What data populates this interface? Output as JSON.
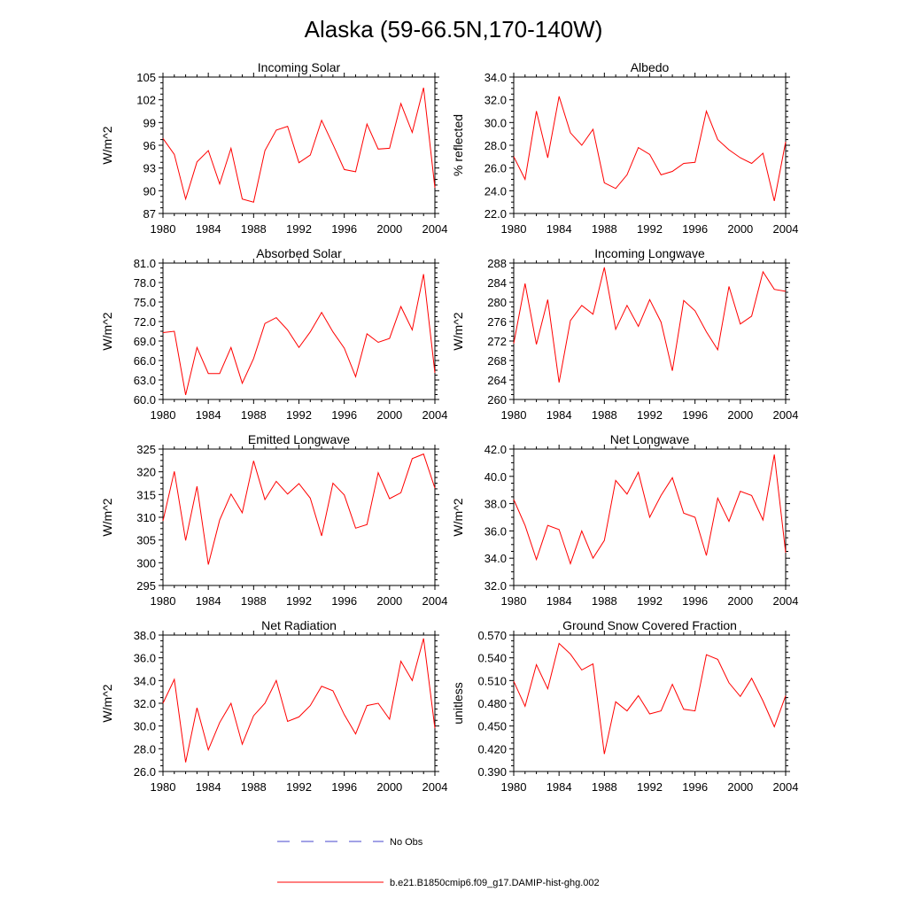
{
  "figure": {
    "title": "Alaska (59-66.5N,170-140W)",
    "colors": {
      "model": "#ff0000",
      "obs": "#4444cc",
      "axis": "#000000"
    },
    "legend": [
      {
        "label": "No Obs",
        "style": "dashed",
        "color": "#4444cc"
      },
      {
        "label": "b.e21.B1850cmip6.f09_g17.DAMIP-hist-ghg.002",
        "style": "solid",
        "color": "#ff0000"
      }
    ]
  },
  "chart_data": [
    {
      "type": "line",
      "title": "Incoming Solar",
      "ylabel": "W/m^2",
      "xlim": [
        1980,
        2004
      ],
      "ylim": [
        87,
        105
      ],
      "yticks": [
        "87",
        "90",
        "93",
        "96",
        "99",
        "102",
        "105"
      ],
      "xticks": [
        "1980",
        "1984",
        "1988",
        "1992",
        "1996",
        "2000",
        "2004"
      ],
      "series": [
        {
          "name": "b.e21.B1850cmip6.f09_g17.DAMIP-hist-ghg.002",
          "x": [
            1980,
            1981,
            1982,
            1983,
            1984,
            1985,
            1986,
            1987,
            1988,
            1989,
            1990,
            1991,
            1992,
            1993,
            1994,
            1995,
            1996,
            1997,
            1998,
            1999,
            2000,
            2001,
            2002,
            2003,
            2004
          ],
          "y": [
            96.9,
            94.8,
            88.9,
            93.8,
            95.3,
            90.9,
            95.6,
            88.9,
            88.5,
            95.3,
            98.0,
            98.5,
            93.7,
            94.7,
            99.3,
            96.1,
            92.8,
            92.5,
            98.8,
            95.5,
            95.6,
            101.5,
            97.7,
            103.6,
            90.4
          ]
        }
      ]
    },
    {
      "type": "line",
      "title": "Albedo",
      "ylabel": "% reflected",
      "xlim": [
        1980,
        2004
      ],
      "ylim": [
        22,
        34
      ],
      "yticks": [
        "22.0",
        "24.0",
        "26.0",
        "28.0",
        "30.0",
        "32.0",
        "34.0"
      ],
      "xticks": [
        "1980",
        "1984",
        "1988",
        "1992",
        "1996",
        "2000",
        "2004"
      ],
      "series": [
        {
          "name": "b.e21.B1850cmip6.f09_g17.DAMIP-hist-ghg.002",
          "x": [
            1980,
            1981,
            1982,
            1983,
            1984,
            1985,
            1986,
            1987,
            1988,
            1989,
            1990,
            1991,
            1992,
            1993,
            1994,
            1995,
            1996,
            1997,
            1998,
            1999,
            2000,
            2001,
            2002,
            2003,
            2004
          ],
          "y": [
            27.0,
            25.0,
            31.0,
            26.9,
            32.3,
            29.1,
            28.0,
            29.4,
            24.7,
            24.2,
            25.4,
            27.8,
            27.2,
            25.4,
            25.7,
            26.4,
            26.5,
            31.0,
            28.5,
            27.6,
            26.9,
            26.4,
            27.3,
            23.1,
            28.3
          ]
        }
      ]
    },
    {
      "type": "line",
      "title": "Absorbed Solar",
      "ylabel": "W/m^2",
      "xlim": [
        1980,
        2004
      ],
      "ylim": [
        60,
        81
      ],
      "yticks": [
        "60.0",
        "63.0",
        "66.0",
        "69.0",
        "72.0",
        "75.0",
        "78.0",
        "81.0"
      ],
      "xticks": [
        "1980",
        "1984",
        "1988",
        "1992",
        "1996",
        "2000",
        "2004"
      ],
      "series": [
        {
          "name": "b.e21.B1850cmip6.f09_g17.DAMIP-hist-ghg.002",
          "x": [
            1980,
            1981,
            1982,
            1983,
            1984,
            1985,
            1986,
            1987,
            1988,
            1989,
            1990,
            1991,
            1992,
            1993,
            1994,
            1995,
            1996,
            1997,
            1998,
            1999,
            2000,
            2001,
            2002,
            2003,
            2004
          ],
          "y": [
            70.3,
            70.5,
            60.7,
            68.0,
            64.0,
            64.0,
            68.0,
            62.5,
            66.3,
            71.7,
            72.6,
            70.7,
            68.0,
            70.4,
            73.4,
            70.4,
            67.9,
            63.5,
            70.1,
            68.8,
            69.4,
            74.3,
            70.7,
            79.3,
            64.1
          ]
        }
      ]
    },
    {
      "type": "line",
      "title": "Incoming Longwave",
      "ylabel": "W/m^2",
      "xlim": [
        1980,
        2004
      ],
      "ylim": [
        260,
        288
      ],
      "yticks": [
        "260",
        "264",
        "268",
        "272",
        "276",
        "280",
        "284",
        "288"
      ],
      "xticks": [
        "1980",
        "1984",
        "1988",
        "1992",
        "1996",
        "2000",
        "2004"
      ],
      "series": [
        {
          "name": "b.e21.B1850cmip6.f09_g17.DAMIP-hist-ghg.002",
          "x": [
            1980,
            1981,
            1982,
            1983,
            1984,
            1985,
            1986,
            1987,
            1988,
            1989,
            1990,
            1991,
            1992,
            1993,
            1994,
            1995,
            1996,
            1997,
            1998,
            1999,
            2000,
            2001,
            2002,
            2003,
            2004
          ],
          "y": [
            271.5,
            283.8,
            271.3,
            280.5,
            263.5,
            276.2,
            279.3,
            277.5,
            287.1,
            274.4,
            279.3,
            275.0,
            280.5,
            275.9,
            265.9,
            280.3,
            278.2,
            273.9,
            270.2,
            283.2,
            275.5,
            277.1,
            286.2,
            282.6,
            282.2
          ]
        }
      ]
    },
    {
      "type": "line",
      "title": "Emitted Longwave",
      "ylabel": "W/m^2",
      "xlim": [
        1980,
        2004
      ],
      "ylim": [
        295,
        325
      ],
      "yticks": [
        "295",
        "300",
        "305",
        "310",
        "315",
        "320",
        "325"
      ],
      "xticks": [
        "1980",
        "1984",
        "1988",
        "1992",
        "1996",
        "2000",
        "2004"
      ],
      "series": [
        {
          "name": "b.e21.B1850cmip6.f09_g17.DAMIP-hist-ghg.002",
          "x": [
            1980,
            1981,
            1982,
            1983,
            1984,
            1985,
            1986,
            1987,
            1988,
            1989,
            1990,
            1991,
            1992,
            1993,
            1994,
            1995,
            1996,
            1997,
            1998,
            1999,
            2000,
            2001,
            2002,
            2003,
            2004
          ],
          "y": [
            309.2,
            320.1,
            304.9,
            316.8,
            299.6,
            309.4,
            315.1,
            311.0,
            322.4,
            313.9,
            317.9,
            315.1,
            317.4,
            314.2,
            305.9,
            317.5,
            314.9,
            307.6,
            308.4,
            319.8,
            314.1,
            315.4,
            322.9,
            323.9,
            316.4
          ]
        }
      ]
    },
    {
      "type": "line",
      "title": "Net Longwave",
      "ylabel": "W/m^2",
      "xlim": [
        1980,
        2004
      ],
      "ylim": [
        32,
        42
      ],
      "yticks": [
        "32.0",
        "34.0",
        "36.0",
        "38.0",
        "40.0",
        "42.0"
      ],
      "xticks": [
        "1980",
        "1984",
        "1988",
        "1992",
        "1996",
        "2000",
        "2004"
      ],
      "series": [
        {
          "name": "b.e21.B1850cmip6.f09_g17.DAMIP-hist-ghg.002",
          "x": [
            1980,
            1981,
            1982,
            1983,
            1984,
            1985,
            1986,
            1987,
            1988,
            1989,
            1990,
            1991,
            1992,
            1993,
            1994,
            1995,
            1996,
            1997,
            1998,
            1999,
            2000,
            2001,
            2002,
            2003,
            2004
          ],
          "y": [
            38.3,
            36.4,
            33.9,
            36.4,
            36.1,
            33.6,
            36.0,
            34.0,
            35.3,
            39.7,
            38.7,
            40.3,
            37.0,
            38.6,
            39.9,
            37.3,
            37.0,
            34.2,
            38.4,
            36.7,
            38.9,
            38.6,
            36.8,
            41.6,
            34.4
          ]
        }
      ]
    },
    {
      "type": "line",
      "title": "Net Radiation",
      "ylabel": "W/m^2",
      "xlim": [
        1980,
        2004
      ],
      "ylim": [
        26,
        38
      ],
      "yticks": [
        "26.0",
        "28.0",
        "30.0",
        "32.0",
        "34.0",
        "36.0",
        "38.0"
      ],
      "xticks": [
        "1980",
        "1984",
        "1988",
        "1992",
        "1996",
        "2000",
        "2004"
      ],
      "series": [
        {
          "name": "b.e21.B1850cmip6.f09_g17.DAMIP-hist-ghg.002",
          "x": [
            1980,
            1981,
            1982,
            1983,
            1984,
            1985,
            1986,
            1987,
            1988,
            1989,
            1990,
            1991,
            1992,
            1993,
            1994,
            1995,
            1996,
            1997,
            1998,
            1999,
            2000,
            2001,
            2002,
            2003,
            2004
          ],
          "y": [
            32.0,
            34.1,
            26.8,
            31.6,
            27.9,
            30.3,
            32.0,
            28.4,
            30.9,
            32.0,
            34.0,
            30.4,
            30.8,
            31.8,
            33.5,
            33.1,
            31.0,
            29.3,
            31.8,
            32.0,
            30.6,
            35.7,
            34.0,
            37.7,
            29.8
          ]
        }
      ]
    },
    {
      "type": "line",
      "title": "Ground Snow Covered Fraction",
      "ylabel": "unitless",
      "xlim": [
        1980,
        2004
      ],
      "ylim": [
        0.39,
        0.57
      ],
      "yticks": [
        "0.390",
        "0.420",
        "0.450",
        "0.480",
        "0.510",
        "0.540",
        "0.570"
      ],
      "xticks": [
        "1980",
        "1984",
        "1988",
        "1992",
        "1996",
        "2000",
        "2004"
      ],
      "series": [
        {
          "name": "b.e21.B1850cmip6.f09_g17.DAMIP-hist-ghg.002",
          "x": [
            1980,
            1981,
            1982,
            1983,
            1984,
            1985,
            1986,
            1987,
            1988,
            1989,
            1990,
            1991,
            1992,
            1993,
            1994,
            1995,
            1996,
            1997,
            1998,
            1999,
            2000,
            2001,
            2002,
            2003,
            2004
          ],
          "y": [
            0.509,
            0.476,
            0.531,
            0.499,
            0.559,
            0.545,
            0.524,
            0.532,
            0.413,
            0.482,
            0.47,
            0.49,
            0.466,
            0.47,
            0.505,
            0.472,
            0.47,
            0.544,
            0.538,
            0.507,
            0.489,
            0.513,
            0.483,
            0.449,
            0.49
          ]
        }
      ]
    }
  ]
}
